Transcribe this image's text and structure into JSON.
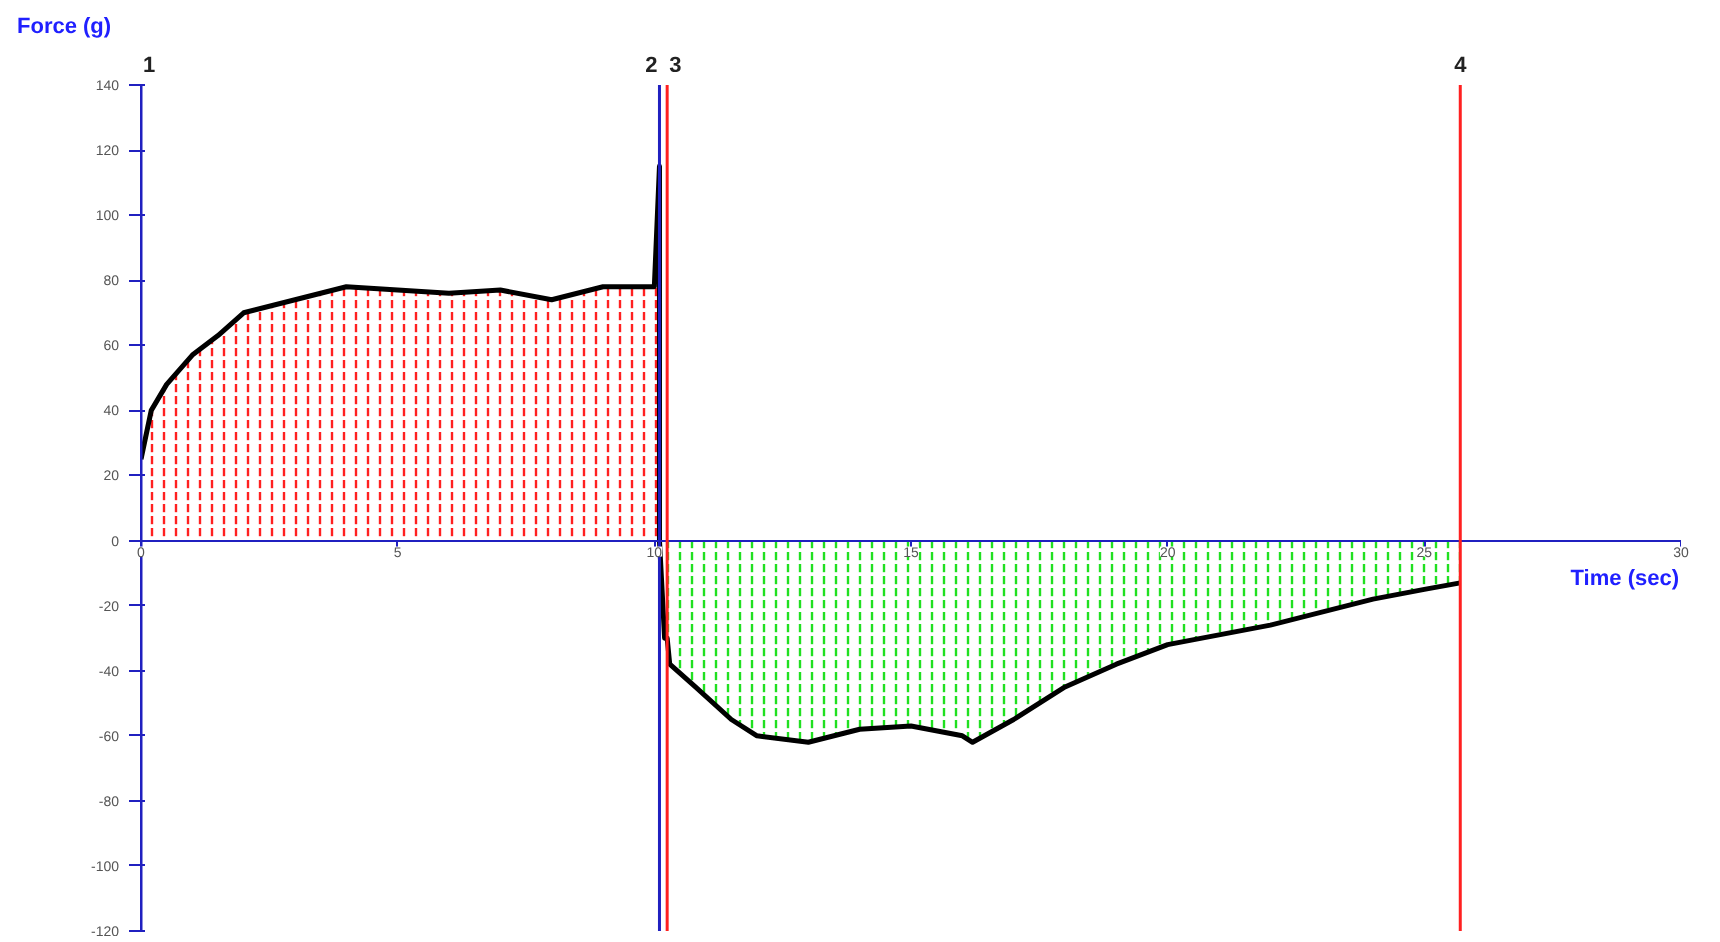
{
  "chart_data": {
    "type": "line",
    "xlabel": "Time (sec)",
    "ylabel": "Force (g)",
    "xlim": [
      0,
      30
    ],
    "ylim": [
      -120,
      140
    ],
    "xticks": [
      0,
      5,
      10,
      15,
      20,
      25,
      30
    ],
    "yticks": [
      -120,
      -100,
      -80,
      -60,
      -40,
      -20,
      0,
      20,
      40,
      60,
      80,
      100,
      120,
      140
    ],
    "grid": false,
    "series": [
      {
        "type": "area",
        "color": "#ff2020",
        "x": [
          0,
          0.2,
          0.5,
          1,
          1.5,
          2,
          3,
          4,
          5,
          6,
          7,
          8,
          9,
          10,
          10.1
        ],
        "values": [
          25,
          40,
          48,
          57,
          63,
          70,
          74,
          78,
          77,
          76,
          77,
          74,
          78,
          78,
          78
        ]
      },
      {
        "type": "area",
        "color": "#20e020",
        "x": [
          10.25,
          10.3,
          10.8,
          11.5,
          12,
          13,
          14,
          15,
          16,
          16.2,
          17,
          18,
          19,
          20,
          22,
          24,
          25,
          25.7
        ],
        "values": [
          -30,
          -38,
          -45,
          -55,
          -60,
          -62,
          -58,
          -57,
          -60,
          -62,
          -55,
          -45,
          -38,
          -32,
          -26,
          -18,
          -15,
          -13
        ]
      },
      {
        "color": "#000000",
        "x": [
          0,
          0.2,
          0.5,
          1,
          1.5,
          2,
          3,
          4,
          5,
          6,
          7,
          8,
          9,
          10,
          10.1,
          10.1,
          10.2,
          10.25,
          10.3,
          10.8,
          11.5,
          12,
          13,
          14,
          15,
          16,
          16.2,
          17,
          18,
          19,
          20,
          22,
          24,
          25,
          25.7
        ],
        "values": [
          25,
          40,
          48,
          57,
          63,
          70,
          74,
          78,
          77,
          76,
          77,
          74,
          78,
          78,
          115,
          0,
          -30,
          -30,
          -38,
          -45,
          -55,
          -60,
          -62,
          -58,
          -57,
          -60,
          -62,
          -55,
          -45,
          -38,
          -32,
          -26,
          -18,
          -15,
          -13
        ]
      }
    ],
    "ref_lines": [
      {
        "axis": "x",
        "value": 0,
        "color": "#2020c0"
      },
      {
        "axis": "x",
        "value": 10.1,
        "color": "#2020c0"
      },
      {
        "axis": "x",
        "value": 10.25,
        "color": "#ff2020"
      },
      {
        "axis": "x",
        "value": 25.7,
        "color": "#ff2020"
      }
    ],
    "annotations": [
      {
        "text": "1",
        "x": 0,
        "y": 140
      },
      {
        "text": "2",
        "x": 10.1,
        "y": 140
      },
      {
        "text": "3",
        "x": 10.25,
        "y": 140
      },
      {
        "text": "4",
        "x": 25.7,
        "y": 140
      }
    ]
  }
}
